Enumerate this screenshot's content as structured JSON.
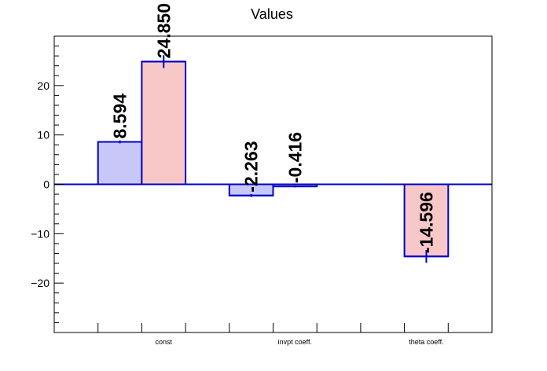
{
  "chart_data": {
    "type": "bar",
    "title": "Values",
    "categories": [
      "const",
      "invpt coeff.",
      "theta coeff."
    ],
    "ylim": [
      -30,
      30
    ],
    "yticks": [
      -20,
      -10,
      0,
      10,
      20
    ],
    "ytick_labels": [
      "−20",
      "−10",
      "0",
      "10",
      "20"
    ],
    "series": [
      {
        "fill": "#c8c8f8",
        "stroke": "#0000cc",
        "values": [
          8.594,
          -2.263,
          null
        ],
        "errors": [
          0.3,
          0.3,
          null
        ],
        "labels": [
          "8.594",
          "-2.263",
          ""
        ]
      },
      {
        "fill": "#f8c8c8",
        "stroke": "#0000cc",
        "values": [
          24.85,
          -0.416,
          -14.596
        ],
        "errors": [
          1.3,
          0.2,
          1.3
        ],
        "labels": [
          "24.850",
          "-0.416",
          "-14.596"
        ]
      }
    ],
    "grid": false,
    "legend": "none",
    "zero_line_color": "#0000cc"
  }
}
